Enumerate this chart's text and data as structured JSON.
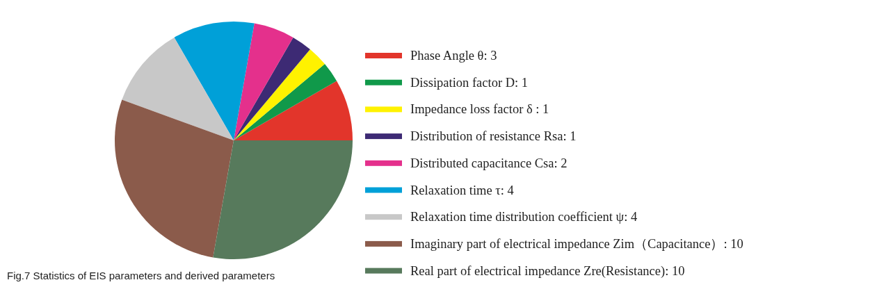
{
  "chart_data": {
    "type": "pie",
    "categories": [
      "Phase Angle θ: 3",
      "Dissipation factor D: 1",
      "Impedance loss factor δ : 1",
      "Distribution of resistance Rsa: 1",
      "Distributed capacitance Csa: 2",
      "Relaxation time τ: 4",
      "Relaxation time distribution coefficient ψ: 4",
      "Imaginary part of electrical impedance Zim（Capacitance）: 10",
      "Real part of electrical impedance Zre(Resistance): 10"
    ],
    "values": [
      3,
      1,
      1,
      1,
      2,
      4,
      4,
      10,
      10
    ],
    "colors": [
      "#e2352b",
      "#10994a",
      "#fff200",
      "#3d2a74",
      "#e4308c",
      "#00a0d8",
      "#c8c8c8",
      "#8b5b4b",
      "#577a5c"
    ],
    "legend": "right",
    "annotations": [
      "Fig.7  Statistics of EIS parameters and derived parameters"
    ]
  }
}
